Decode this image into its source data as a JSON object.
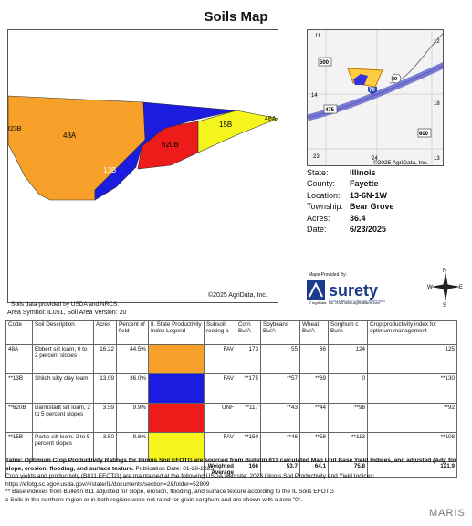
{
  "title": "Soils Map",
  "map": {
    "labels": [
      "48A",
      "13B",
      "620B",
      "15B"
    ],
    "edge_labels": [
      "I23B",
      "48A"
    ],
    "copyright": "©2025 AgriData, Inc."
  },
  "locator": {
    "labels": [
      "11",
      "12",
      "500",
      "40",
      "70",
      "14",
      "475",
      "18",
      "600",
      "23",
      "24",
      "13"
    ],
    "copyright": "©2025 AgriData, Inc."
  },
  "info": [
    {
      "k": "State:",
      "v": "Illinois"
    },
    {
      "k": "County:",
      "v": "Fayette"
    },
    {
      "k": "Location:",
      "v": "13-6N-1W"
    },
    {
      "k": "Township:",
      "v": "Bear Grove"
    },
    {
      "k": "Acres:",
      "v": "36.4"
    },
    {
      "k": "Date:",
      "v": "6/23/2025"
    }
  ],
  "credits": "Soils data provided by USDA and NRCS.",
  "provided_by": "Maps Provided By:",
  "surety": {
    "name": "surety",
    "tagline": "CUSTOMIZED ONLINE MAPPING",
    "copyright": "© AgriData, Inc. 2025      www.AgriDataInc.com"
  },
  "compass": {
    "n": "N",
    "s": "S",
    "e": "E",
    "w": "W"
  },
  "area_symbol": "Area Symbol: IL051, Soil Area Version: 20",
  "table": {
    "headers": [
      "Code",
      "Soil Description",
      "Acres",
      "Percent of field",
      "Il. State Productivity Index Legend",
      "Subsoil rooting a",
      "Corn Bu/A",
      "Soybeans Bu/A",
      "Wheat Bu/A",
      "Sorghum c Bu/A",
      "Crop productivity index for optimum management"
    ],
    "rows": [
      {
        "code": "48A",
        "desc": "Ebbert silt loam, 0 to 2 percent slopes",
        "acres": "16.22",
        "pct": "44.5%",
        "color": "#f7a12a",
        "root": "FAV",
        "corn": "173",
        "soy": "55",
        "wheat": "66",
        "sorghum": "124",
        "cpi": "125"
      },
      {
        "code": "**13B",
        "desc": "Shiloh silty clay loam",
        "acres": "13.09",
        "pct": "36.0%",
        "color": "#1c1ce0",
        "root": "FAV",
        "corn": "**175",
        "soy": "**57",
        "wheat": "**69",
        "sorghum": "0",
        "cpi": "**130"
      },
      {
        "code": "**620B",
        "desc": "Darmstadt silt loam, 2 to 5 percent slopes",
        "acres": "3.59",
        "pct": "9.9%",
        "color": "#ee1b1b",
        "root": "UNF",
        "corn": "**117",
        "soy": "**43",
        "wheat": "**44",
        "sorghum": "**98",
        "cpi": "**92"
      },
      {
        "code": "**15B",
        "desc": "Parke silt loam, 2 to 5 percent slopes",
        "acres": "3.50",
        "pct": "9.6%",
        "color": "#f5f51d",
        "root": "FAV",
        "corn": "**150",
        "soy": "**46",
        "wheat": "**58",
        "sorghum": "**113",
        "cpi": "**108"
      }
    ],
    "weighted": {
      "label": "Weighted Average",
      "corn": "166",
      "soy": "53.7",
      "wheat": "64.1",
      "sorghum": "75.8",
      "cpi": "121.9"
    }
  },
  "footnotes": {
    "bold": "Table: Optimum Crop Productivity Ratings for Illinois Soil EFOTG are sourced from Bulletin 811 calculated Map Unit Base Yield Indices, and adjusted (Adj) for slope, erosion, flooding, and surface texture.",
    "pub": " Publication Date: 01-28-2025",
    "l2": "Crop yields and productivity (B811 EFOTG) are maintained at the following USDA web site: 2023 Illinois Soil Productivity and Yield Indices:",
    "l3": "https://efotg.sc.egov.usda.gov/#/state/IL/documents/section=2&folder=52809",
    "l4": "** Base indexes from Bulletin 811 adjusted for slope, erosion, flooding, and surface texture according to the IL Soils EFOTG",
    "l5": "c Soils in the northern region or in both regions were not rated for grain sorghum and are shown with a zero \"0\"."
  },
  "watermark": "MARIS"
}
